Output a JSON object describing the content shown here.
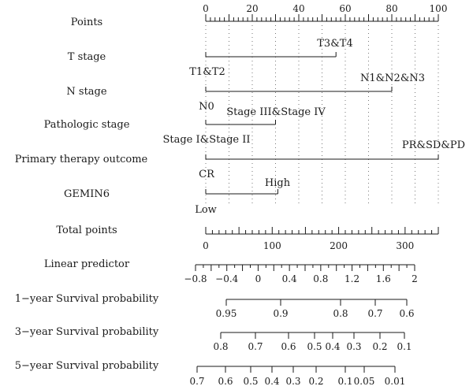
{
  "chart_data": {
    "type": "nomogram",
    "points": {
      "label": "Points",
      "min": 0,
      "max": 100,
      "tick_labels": [
        "0",
        "20",
        "40",
        "60",
        "80",
        "100"
      ]
    },
    "variables": [
      {
        "label": "T stage",
        "levels": [
          {
            "name": "T1&T2",
            "points": 0
          },
          {
            "name": "T3&T4",
            "points": 56
          }
        ]
      },
      {
        "label": "N stage",
        "levels": [
          {
            "name": "N0",
            "points": 0
          },
          {
            "name": "N1&N2&N3",
            "points": 80
          }
        ]
      },
      {
        "label": "Pathologic stage",
        "levels": [
          {
            "name": "Stage I&Stage II",
            "points": 0
          },
          {
            "name": "Stage III&Stage IV",
            "points": 30
          }
        ]
      },
      {
        "label": "Primary therapy outcome",
        "levels": [
          {
            "name": "CR",
            "points": 0
          },
          {
            "name": "PR&SD&PD",
            "points": 100
          }
        ]
      },
      {
        "label": "GEMIN6",
        "levels": [
          {
            "name": "Low",
            "points": 0
          },
          {
            "name": "High",
            "points": 31
          }
        ]
      }
    ],
    "total_points": {
      "label": "Total points",
      "min": 0,
      "max": 350,
      "tick_labels": [
        "0",
        "100",
        "200",
        "300"
      ]
    },
    "linear_predictor": {
      "label": "Linear predictor",
      "tick_labels": [
        "-0.8",
        "-0.4",
        "0",
        "0.4",
        "0.8",
        "1.2",
        "1.6",
        "2"
      ]
    },
    "survival_scales": [
      {
        "label": "1-year Survival probability",
        "tick_labels": [
          "0.95",
          "0.9",
          "0.8",
          "0.7",
          "0.6"
        ]
      },
      {
        "label": "3-year Survival probability",
        "tick_labels": [
          "0.8",
          "0.7",
          "0.6",
          "0.5",
          "0.4",
          "0.3",
          "0.2",
          "0.1"
        ]
      },
      {
        "label": "5-year Survival probability",
        "tick_labels": [
          "0.7",
          "0.6",
          "0.5",
          "0.4",
          "0.3",
          "0.2",
          "0.1",
          "0.05",
          "0.01"
        ]
      }
    ]
  }
}
